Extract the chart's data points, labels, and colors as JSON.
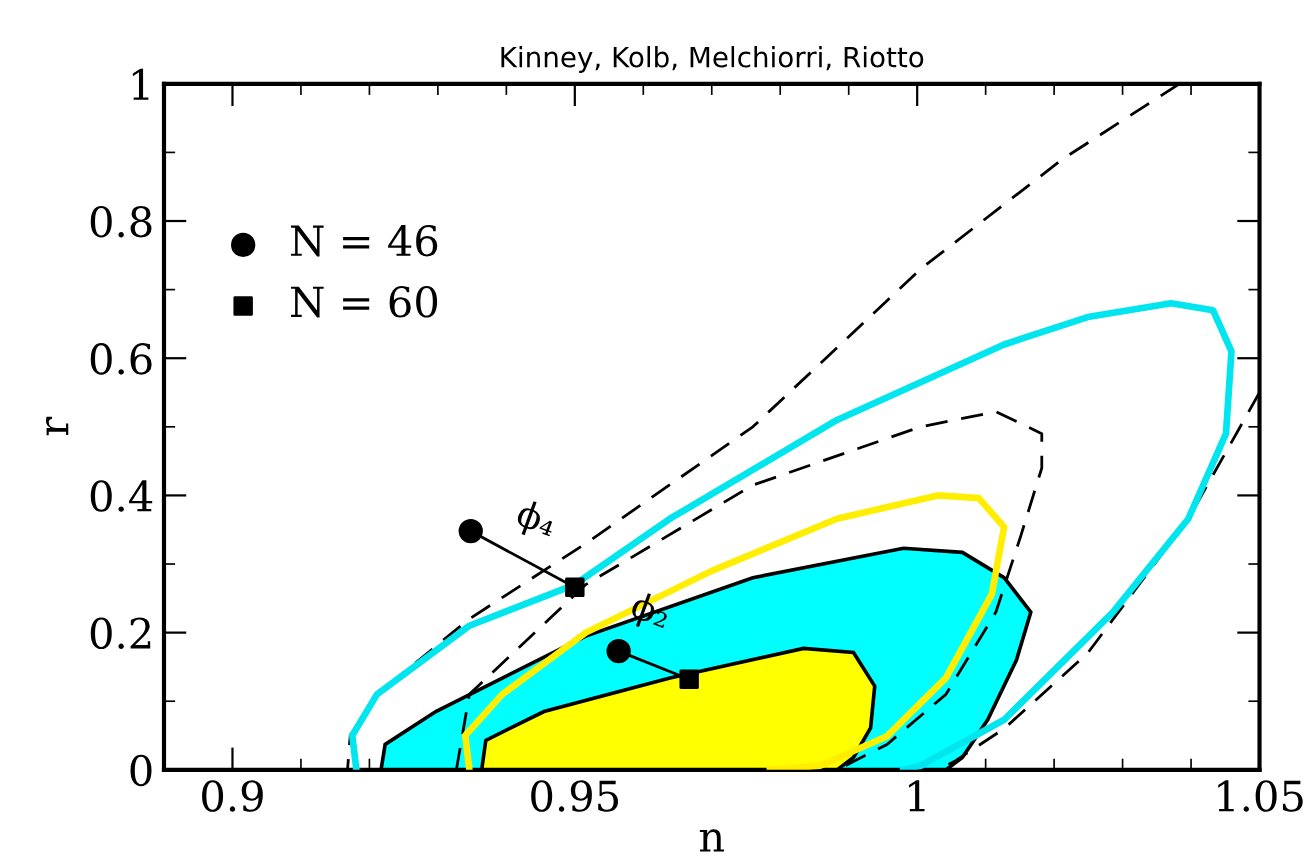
{
  "chart_data": {
    "type": "line",
    "title": "Kinney, Kolb, Melchiorri, Riotto",
    "xlabel": "n",
    "ylabel": "r",
    "xlim": [
      0.89,
      1.05
    ],
    "ylim": [
      0,
      1
    ],
    "xticks": [
      0.9,
      0.95,
      1,
      1.05
    ],
    "yticks": [
      0,
      0.2,
      0.4,
      0.6,
      0.8,
      1
    ],
    "grid": false,
    "legend": "top left",
    "series": [
      {
        "line_style": "dashed",
        "color": "#000000",
        "x": [
          1.0383,
          1.0212,
          1.0005,
          0.976,
          0.9516,
          0.9346,
          0.9211,
          0.9172,
          0.9168
        ],
        "values": [
          1.0,
          0.89,
          0.73,
          0.5,
          0.33,
          0.22,
          0.11,
          0.05,
          0
        ]
      },
      {
        "line_style": "dashed",
        "color": "#000000",
        "x": [
          1.05,
          1.0396,
          1.0249,
          1.0127,
          1.0054,
          1.003
        ],
        "values": [
          0.55,
          0.366,
          0.17,
          0.06,
          0.012,
          0
        ]
      },
      {
        "type": "area",
        "color": "#00ffff",
        "x": [
          0.9217,
          0.9223,
          0.9297,
          0.9516,
          0.976,
          0.998,
          1.0066,
          1.0127,
          1.0166,
          1.0145,
          1.0103,
          1.0066,
          1.0042
        ],
        "values": [
          0,
          0.037,
          0.085,
          0.195,
          0.28,
          0.323,
          0.317,
          0.28,
          0.23,
          0.16,
          0.073,
          0.018,
          0
        ]
      },
      {
        "type": "area",
        "color": "#ffff00",
        "x": [
          0.9364,
          0.937,
          0.9455,
          0.9639,
          0.9834,
          0.9907,
          0.9938,
          0.9932,
          0.9907,
          0.9883
        ],
        "values": [
          0,
          0.043,
          0.085,
          0.134,
          0.177,
          0.171,
          0.122,
          0.061,
          0.018,
          0
        ]
      },
      {
        "line_style": "dashed",
        "color": "#000000",
        "x": [
          0.9327,
          0.9346,
          0.9516,
          0.976,
          1.0005,
          1.0115,
          1.0182,
          1.0182,
          1.0151,
          1.0115,
          1.0042,
          0.9956,
          0.9883
        ],
        "values": [
          0,
          0.11,
          0.27,
          0.415,
          0.5,
          0.522,
          0.49,
          0.44,
          0.34,
          0.23,
          0.11,
          0.037,
          0
        ]
      },
      {
        "line_style": "solid",
        "color": "#00e5ee",
        "x": [
          0.9181,
          0.9175,
          0.9211,
          0.9346,
          0.95,
          0.9639,
          0.9883,
          1.0127,
          1.0249,
          1.0371,
          1.0432,
          1.0459,
          1.0451,
          1.0396,
          1.0286,
          1.0127,
          1.0005,
          0.998
        ],
        "values": [
          0,
          0.05,
          0.11,
          0.21,
          0.27,
          0.366,
          0.51,
          0.62,
          0.66,
          0.68,
          0.67,
          0.61,
          0.49,
          0.366,
          0.23,
          0.073,
          0.006,
          0
        ]
      },
      {
        "line_style": "solid",
        "color": "#ffee00",
        "x": [
          0.9346,
          0.934,
          0.9394,
          0.9516,
          0.97,
          0.9883,
          1.003,
          1.009,
          1.0127,
          1.0109,
          1.0042,
          0.9956,
          0.9858,
          0.9785
        ],
        "values": [
          0,
          0.05,
          0.11,
          0.2,
          0.29,
          0.366,
          0.4,
          0.396,
          0.354,
          0.256,
          0.134,
          0.049,
          0.006,
          0
        ]
      },
      {
        "line_style": "solid",
        "color": "#000000",
        "x": [
          0.9348,
          0.95
        ],
        "values": [
          0.348,
          0.266
        ]
      },
      {
        "line_style": "solid",
        "color": "#000000",
        "x": [
          0.9564,
          0.9667
        ],
        "values": [
          0.173,
          0.132
        ]
      },
      {
        "type": "scatter",
        "name": "N = 46",
        "marker": "circle",
        "color": "#000000",
        "x": [
          0.9348,
          0.9564
        ],
        "values": [
          0.348,
          0.173
        ]
      },
      {
        "type": "scatter",
        "name": "N = 60",
        "marker": "square",
        "color": "#000000",
        "x": [
          0.95,
          0.9667
        ],
        "values": [
          0.266,
          0.132
        ]
      }
    ],
    "annotations": [
      {
        "text": "ϕ₄",
        "x": 0.95,
        "y": 0.266
      },
      {
        "text": "ϕ₂",
        "x": 0.9667,
        "y": 0.132
      }
    ]
  }
}
